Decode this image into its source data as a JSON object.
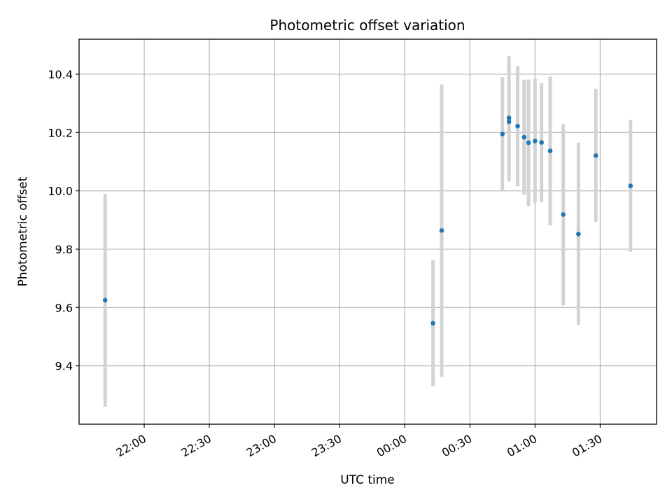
{
  "chart_data": {
    "type": "scatter",
    "title": "Photometric offset variation",
    "xlabel": "UTC time",
    "ylabel": "Photometric offset",
    "x_tick_labels": [
      "22:00",
      "22:30",
      "23:00",
      "23:30",
      "00:00",
      "00:30",
      "01:00",
      "01:30"
    ],
    "x_ticks": [
      "22:00",
      "22:30",
      "23:00",
      "23:30",
      "00:00",
      "00:30",
      "01:00",
      "01:30"
    ],
    "xlim": [
      "21:30",
      "01:56"
    ],
    "y_ticks": [
      9.4,
      9.6,
      9.8,
      10.0,
      10.2,
      10.4
    ],
    "y_tick_labels": [
      "9.4",
      "9.6",
      "9.8",
      "10.0",
      "10.2",
      "10.4"
    ],
    "ylim": [
      9.2,
      10.52
    ],
    "grid": true,
    "marker_color": "#1f77b4",
    "errorbar_color": "#d3d3d3",
    "points": [
      {
        "x": "21:42",
        "y": 9.625,
        "ylow": 9.26,
        "yhigh": 9.99
      },
      {
        "x": "00:13",
        "y": 9.546,
        "ylow": 9.33,
        "yhigh": 9.762
      },
      {
        "x": "00:17",
        "y": 9.864,
        "ylow": 9.362,
        "yhigh": 10.365
      },
      {
        "x": "00:45",
        "y": 10.195,
        "ylow": 9.998,
        "yhigh": 10.39
      },
      {
        "x": "00:48",
        "y": 10.237,
        "ylow": 10.032,
        "yhigh": 10.442
      },
      {
        "x": "00:48",
        "y": 10.25,
        "ylow": 10.04,
        "yhigh": 10.462
      },
      {
        "x": "00:52",
        "y": 10.222,
        "ylow": 10.015,
        "yhigh": 10.428
      },
      {
        "x": "00:55",
        "y": 10.184,
        "ylow": 9.987,
        "yhigh": 10.38
      },
      {
        "x": "00:57",
        "y": 10.165,
        "ylow": 9.948,
        "yhigh": 10.382
      },
      {
        "x": "01:00",
        "y": 10.171,
        "ylow": 9.96,
        "yhigh": 10.384
      },
      {
        "x": "01:03",
        "y": 10.166,
        "ylow": 9.962,
        "yhigh": 10.37
      },
      {
        "x": "01:07",
        "y": 10.137,
        "ylow": 9.882,
        "yhigh": 10.392
      },
      {
        "x": "01:13",
        "y": 9.919,
        "ylow": 9.607,
        "yhigh": 10.229
      },
      {
        "x": "01:20",
        "y": 9.852,
        "ylow": 9.54,
        "yhigh": 10.165
      },
      {
        "x": "01:28",
        "y": 10.121,
        "ylow": 9.894,
        "yhigh": 10.35
      },
      {
        "x": "01:44",
        "y": 10.017,
        "ylow": 9.791,
        "yhigh": 10.243
      }
    ]
  }
}
